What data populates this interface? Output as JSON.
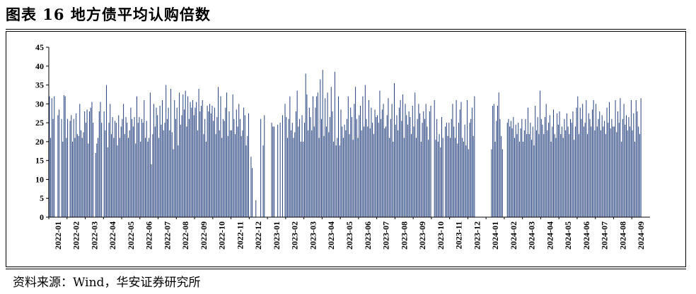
{
  "title": "图表 16 地方债平均认购倍数",
  "source": "资料来源：Wind，华安证券研究所",
  "colors": {
    "bar": "#1f3b7a",
    "axis": "#000000"
  },
  "chart_data": {
    "type": "bar",
    "title": "",
    "xlabel": "",
    "ylabel": "",
    "ylim": [
      0,
      45
    ],
    "yticks": [
      "0",
      "5",
      "10",
      "15",
      "20",
      "25",
      "30",
      "35",
      "40",
      "45"
    ],
    "grid": false,
    "legend": "none",
    "categories": [
      "2022-01",
      "2022-02",
      "2022-03",
      "2022-04",
      "2022-05",
      "2022-06",
      "2022-07",
      "2022-08",
      "2022-09",
      "2022-10",
      "2022-11",
      "2022-12",
      "2023-01",
      "2023-02",
      "2023-03",
      "2023-04",
      "2023-05",
      "2023-06",
      "2023-07",
      "2023-08",
      "2023-09",
      "2023-10",
      "2023-11",
      "2023-12",
      "2024-01",
      "2024-02",
      "2024-03",
      "2024-04",
      "2024-05",
      "2024-06",
      "2024-07",
      "2024-08",
      "2024-09"
    ],
    "series": [
      {
        "values": [
          [
            32.0,
            21.0,
            31.5,
            26.0,
            32.0,
            0,
            0,
            27.0,
            28.5,
            0,
            26.0,
            20.0,
            32.3,
            32.0,
            21.0
          ],
          [
            26.0,
            0,
            25.5,
            27.0,
            20.0,
            26.0,
            21.0,
            27.5,
            22.0,
            21.5,
            30.0,
            23.0,
            21.0,
            22.5,
            28.0
          ],
          [
            25.0,
            28.5,
            19.5,
            28.0,
            29.0,
            30.5,
            25.0,
            0,
            17.0,
            19.5,
            21.0,
            28.0,
            30.5,
            25.0,
            0
          ],
          [
            28.0,
            23.0,
            35.0,
            18.5,
            25.0,
            30.0,
            22.0,
            26.5,
            21.0,
            25.5,
            25.0,
            19.0,
            27.0,
            21.0,
            24.0
          ],
          [
            26.0,
            30.0,
            22.0,
            26.5,
            25.0,
            21.0,
            23.0,
            29.0,
            26.0,
            24.0,
            26.5,
            19.5,
            32.0,
            25.0,
            26.5
          ],
          [
            20.0,
            26.0,
            25.0,
            31.0,
            21.0,
            25.5,
            20.0,
            21.0,
            33.0,
            14.0,
            22.0,
            30.0,
            24.0,
            29.0,
            27.0
          ],
          [
            21.0,
            29.5,
            24.5,
            31.0,
            23.0,
            25.0,
            35.0,
            26.0,
            29.0,
            23.0,
            34.0,
            22.5,
            18.0,
            31.0,
            26.0
          ],
          [
            29.0,
            19.0,
            33.0,
            24.5,
            27.0,
            32.5,
            28.5,
            33.5,
            24.0,
            32.0,
            26.0,
            30.5,
            29.0,
            31.0,
            27.0
          ],
          [
            29.0,
            30.5,
            23.0,
            34.0,
            28.0,
            29.5,
            31.0,
            22.0,
            26.0,
            20.0,
            29.5,
            28.0,
            30.0,
            27.5,
            29.5
          ],
          [
            25.5,
            29.0,
            22.0,
            26.5,
            34.5,
            23.0,
            32.0,
            21.0,
            26.0,
            25.5,
            29.0,
            33.0,
            21.5,
            28.0,
            23.0
          ],
          [
            23.0,
            32.5,
            26.0,
            22.0,
            28.5,
            24.0,
            30.0,
            26.0,
            21.5,
            23.0,
            29.0,
            27.0,
            19.0,
            21.5,
            27.5
          ],
          [
            0,
            16.0,
            13.0,
            0,
            0,
            4.5,
            0,
            0,
            0,
            26.0,
            0,
            19.0,
            27.0,
            0,
            0
          ],
          [
            0,
            0,
            0,
            25.0,
            24.0,
            24.0,
            0,
            0,
            24.5,
            0,
            25.0,
            0,
            27.0,
            0,
            30.0
          ],
          [
            26.5,
            21.0,
            26.0,
            32.0,
            23.0,
            25.0,
            21.0,
            22.5,
            28.0,
            33.5,
            24.0,
            26.0,
            20.0,
            27.0,
            20.0
          ],
          [
            25.0,
            38.0,
            32.5,
            23.0,
            29.0,
            26.5,
            23.0,
            32.0,
            24.0,
            29.0,
            32.0,
            33.0,
            21.0,
            36.5,
            26.0
          ],
          [
            39.0,
            21.5,
            31.5,
            24.0,
            33.0,
            22.5,
            26.5,
            34.5,
            28.0,
            20.0,
            38.5,
            19.0,
            21.0,
            32.0,
            19.0
          ],
          [
            28.5,
            24.0,
            21.0,
            24.5,
            23.0,
            26.0,
            32.0,
            22.0,
            29.0,
            26.5,
            20.5,
            30.0,
            34.5,
            26.0,
            21.0
          ],
          [
            27.0,
            29.5,
            23.0,
            32.0,
            24.0,
            35.0,
            26.0,
            24.0,
            31.0,
            23.5,
            29.0,
            25.0,
            22.0,
            28.5,
            26.5
          ],
          [
            27.0,
            25.0,
            33.5,
            26.0,
            28.5,
            30.0,
            23.5,
            24.0,
            27.0,
            31.5,
            21.0,
            26.0,
            30.0,
            20.0,
            35.5
          ],
          [
            24.5,
            27.0,
            23.0,
            29.0,
            31.0,
            25.5,
            32.5,
            21.0,
            30.0,
            27.0,
            24.5,
            28.0,
            26.5,
            22.0,
            29.5
          ],
          [
            24.0,
            33.0,
            21.0,
            26.0,
            30.0,
            27.5,
            20.0,
            25.0,
            28.0,
            26.0,
            30.0,
            24.0,
            20.5,
            28.0,
            29.5
          ],
          [
            0,
            0,
            31.0,
            20.5,
            26.0,
            20.0,
            22.0,
            18.5,
            26.5,
            21.0,
            0,
            24.0,
            25.0,
            21.5,
            25.0
          ],
          [
            21.0,
            26.0,
            30.0,
            24.0,
            21.0,
            31.0,
            19.5,
            25.0,
            28.5,
            30.5,
            21.0,
            20.0,
            24.5,
            19.0,
            31.0
          ],
          [
            18.0,
            25.0,
            26.0,
            29.0,
            21.5,
            32.0,
            0,
            0,
            0,
            0,
            0,
            0,
            0,
            0,
            0
          ],
          [
            0,
            0,
            0,
            0,
            18.0,
            29.5,
            30.0,
            20.0,
            25.5,
            29.5,
            33.0,
            26.0,
            21.5,
            18.0,
            0
          ],
          [
            0,
            0,
            25.0,
            26.0,
            24.0,
            25.5,
            23.5,
            26.5,
            21.0,
            24.5,
            22.0,
            25.0,
            20.0,
            23.5,
            26.0
          ],
          [
            20.0,
            23.0,
            26.0,
            22.0,
            29.0,
            22.0,
            25.0,
            20.5,
            24.0,
            19.0,
            29.5,
            23.0,
            26.5,
            22.0,
            33.5
          ],
          [
            26.0,
            24.5,
            22.0,
            26.5,
            30.0,
            23.0,
            25.0,
            27.0,
            20.0,
            24.0,
            28.5,
            22.0,
            21.0,
            27.5,
            24.5
          ],
          [
            28.0,
            22.0,
            24.0,
            21.0,
            26.0,
            23.0,
            27.5,
            24.0,
            22.0,
            26.0,
            25.0,
            28.0,
            20.5,
            24.0,
            29.0
          ],
          [
            32.0,
            22.0,
            29.0,
            26.0,
            30.0,
            24.0,
            25.0,
            31.0,
            22.0,
            27.5,
            26.0,
            24.0,
            28.5,
            31.0,
            23.0
          ],
          [
            30.0,
            24.0,
            26.0,
            28.0,
            23.0,
            27.0,
            24.0,
            25.5,
            22.0,
            29.0,
            25.0,
            30.5,
            23.5,
            26.0,
            24.0
          ],
          [
            24.0,
            31.0,
            22.5,
            28.0,
            25.0,
            31.5,
            20.0,
            26.0,
            30.0,
            24.5,
            27.0,
            23.0,
            26.5,
            24.0,
            31.0
          ],
          [
            23.0,
            27.5,
            20.0,
            31.0,
            28.0,
            24.0,
            22.0,
            31.5,
            0,
            0,
            0,
            0,
            0,
            0,
            0
          ]
        ]
      }
    ]
  }
}
